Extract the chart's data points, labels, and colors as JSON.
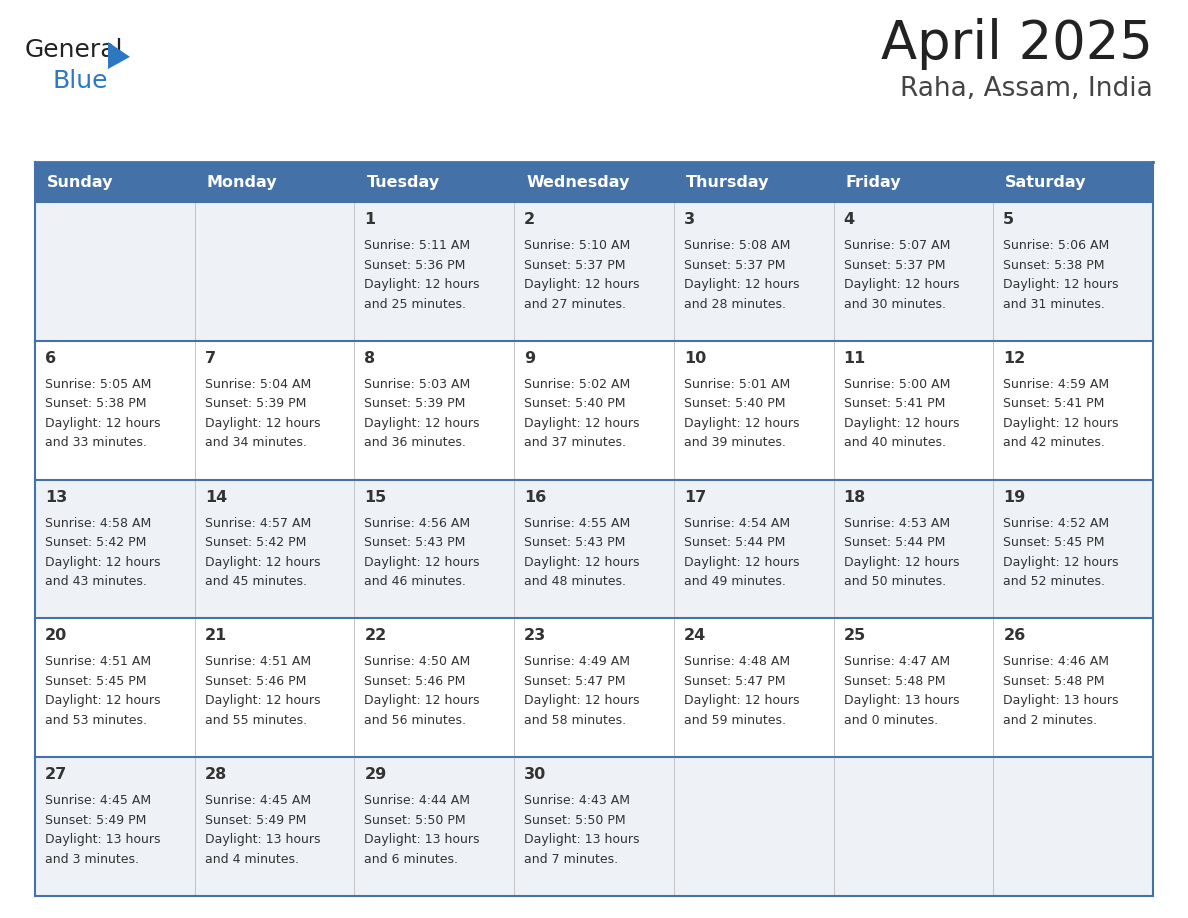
{
  "title": "April 2025",
  "subtitle": "Raha, Assam, India",
  "days_of_week": [
    "Sunday",
    "Monday",
    "Tuesday",
    "Wednesday",
    "Thursday",
    "Friday",
    "Saturday"
  ],
  "header_bg_color": "#4472a8",
  "header_text_color": "#ffffff",
  "row_bg_even": "#eef2f7",
  "row_bg_odd": "#ffffff",
  "border_color": "#4472a8",
  "text_color": "#333333",
  "title_color": "#222222",
  "subtitle_color": "#444444",
  "logo_general_color": "#222222",
  "logo_blue_color": "#2b79c2",
  "calendar_data": [
    [
      {
        "day": "",
        "sunrise": "",
        "sunset": "",
        "daylight_h": "",
        "daylight_m": ""
      },
      {
        "day": "",
        "sunrise": "",
        "sunset": "",
        "daylight_h": "",
        "daylight_m": ""
      },
      {
        "day": "1",
        "sunrise": "5:11 AM",
        "sunset": "5:36 PM",
        "daylight_h": "12 hours",
        "daylight_m": "and 25 minutes."
      },
      {
        "day": "2",
        "sunrise": "5:10 AM",
        "sunset": "5:37 PM",
        "daylight_h": "12 hours",
        "daylight_m": "and 27 minutes."
      },
      {
        "day": "3",
        "sunrise": "5:08 AM",
        "sunset": "5:37 PM",
        "daylight_h": "12 hours",
        "daylight_m": "and 28 minutes."
      },
      {
        "day": "4",
        "sunrise": "5:07 AM",
        "sunset": "5:37 PM",
        "daylight_h": "12 hours",
        "daylight_m": "and 30 minutes."
      },
      {
        "day": "5",
        "sunrise": "5:06 AM",
        "sunset": "5:38 PM",
        "daylight_h": "12 hours",
        "daylight_m": "and 31 minutes."
      }
    ],
    [
      {
        "day": "6",
        "sunrise": "5:05 AM",
        "sunset": "5:38 PM",
        "daylight_h": "12 hours",
        "daylight_m": "and 33 minutes."
      },
      {
        "day": "7",
        "sunrise": "5:04 AM",
        "sunset": "5:39 PM",
        "daylight_h": "12 hours",
        "daylight_m": "and 34 minutes."
      },
      {
        "day": "8",
        "sunrise": "5:03 AM",
        "sunset": "5:39 PM",
        "daylight_h": "12 hours",
        "daylight_m": "and 36 minutes."
      },
      {
        "day": "9",
        "sunrise": "5:02 AM",
        "sunset": "5:40 PM",
        "daylight_h": "12 hours",
        "daylight_m": "and 37 minutes."
      },
      {
        "day": "10",
        "sunrise": "5:01 AM",
        "sunset": "5:40 PM",
        "daylight_h": "12 hours",
        "daylight_m": "and 39 minutes."
      },
      {
        "day": "11",
        "sunrise": "5:00 AM",
        "sunset": "5:41 PM",
        "daylight_h": "12 hours",
        "daylight_m": "and 40 minutes."
      },
      {
        "day": "12",
        "sunrise": "4:59 AM",
        "sunset": "5:41 PM",
        "daylight_h": "12 hours",
        "daylight_m": "and 42 minutes."
      }
    ],
    [
      {
        "day": "13",
        "sunrise": "4:58 AM",
        "sunset": "5:42 PM",
        "daylight_h": "12 hours",
        "daylight_m": "and 43 minutes."
      },
      {
        "day": "14",
        "sunrise": "4:57 AM",
        "sunset": "5:42 PM",
        "daylight_h": "12 hours",
        "daylight_m": "and 45 minutes."
      },
      {
        "day": "15",
        "sunrise": "4:56 AM",
        "sunset": "5:43 PM",
        "daylight_h": "12 hours",
        "daylight_m": "and 46 minutes."
      },
      {
        "day": "16",
        "sunrise": "4:55 AM",
        "sunset": "5:43 PM",
        "daylight_h": "12 hours",
        "daylight_m": "and 48 minutes."
      },
      {
        "day": "17",
        "sunrise": "4:54 AM",
        "sunset": "5:44 PM",
        "daylight_h": "12 hours",
        "daylight_m": "and 49 minutes."
      },
      {
        "day": "18",
        "sunrise": "4:53 AM",
        "sunset": "5:44 PM",
        "daylight_h": "12 hours",
        "daylight_m": "and 50 minutes."
      },
      {
        "day": "19",
        "sunrise": "4:52 AM",
        "sunset": "5:45 PM",
        "daylight_h": "12 hours",
        "daylight_m": "and 52 minutes."
      }
    ],
    [
      {
        "day": "20",
        "sunrise": "4:51 AM",
        "sunset": "5:45 PM",
        "daylight_h": "12 hours",
        "daylight_m": "and 53 minutes."
      },
      {
        "day": "21",
        "sunrise": "4:51 AM",
        "sunset": "5:46 PM",
        "daylight_h": "12 hours",
        "daylight_m": "and 55 minutes."
      },
      {
        "day": "22",
        "sunrise": "4:50 AM",
        "sunset": "5:46 PM",
        "daylight_h": "12 hours",
        "daylight_m": "and 56 minutes."
      },
      {
        "day": "23",
        "sunrise": "4:49 AM",
        "sunset": "5:47 PM",
        "daylight_h": "12 hours",
        "daylight_m": "and 58 minutes."
      },
      {
        "day": "24",
        "sunrise": "4:48 AM",
        "sunset": "5:47 PM",
        "daylight_h": "12 hours",
        "daylight_m": "and 59 minutes."
      },
      {
        "day": "25",
        "sunrise": "4:47 AM",
        "sunset": "5:48 PM",
        "daylight_h": "13 hours",
        "daylight_m": "and 0 minutes."
      },
      {
        "day": "26",
        "sunrise": "4:46 AM",
        "sunset": "5:48 PM",
        "daylight_h": "13 hours",
        "daylight_m": "and 2 minutes."
      }
    ],
    [
      {
        "day": "27",
        "sunrise": "4:45 AM",
        "sunset": "5:49 PM",
        "daylight_h": "13 hours",
        "daylight_m": "and 3 minutes."
      },
      {
        "day": "28",
        "sunrise": "4:45 AM",
        "sunset": "5:49 PM",
        "daylight_h": "13 hours",
        "daylight_m": "and 4 minutes."
      },
      {
        "day": "29",
        "sunrise": "4:44 AM",
        "sunset": "5:50 PM",
        "daylight_h": "13 hours",
        "daylight_m": "and 6 minutes."
      },
      {
        "day": "30",
        "sunrise": "4:43 AM",
        "sunset": "5:50 PM",
        "daylight_h": "13 hours",
        "daylight_m": "and 7 minutes."
      },
      {
        "day": "",
        "sunrise": "",
        "sunset": "",
        "daylight_h": "",
        "daylight_m": ""
      },
      {
        "day": "",
        "sunrise": "",
        "sunset": "",
        "daylight_h": "",
        "daylight_m": ""
      },
      {
        "day": "",
        "sunrise": "",
        "sunset": "",
        "daylight_h": "",
        "daylight_m": ""
      }
    ]
  ]
}
